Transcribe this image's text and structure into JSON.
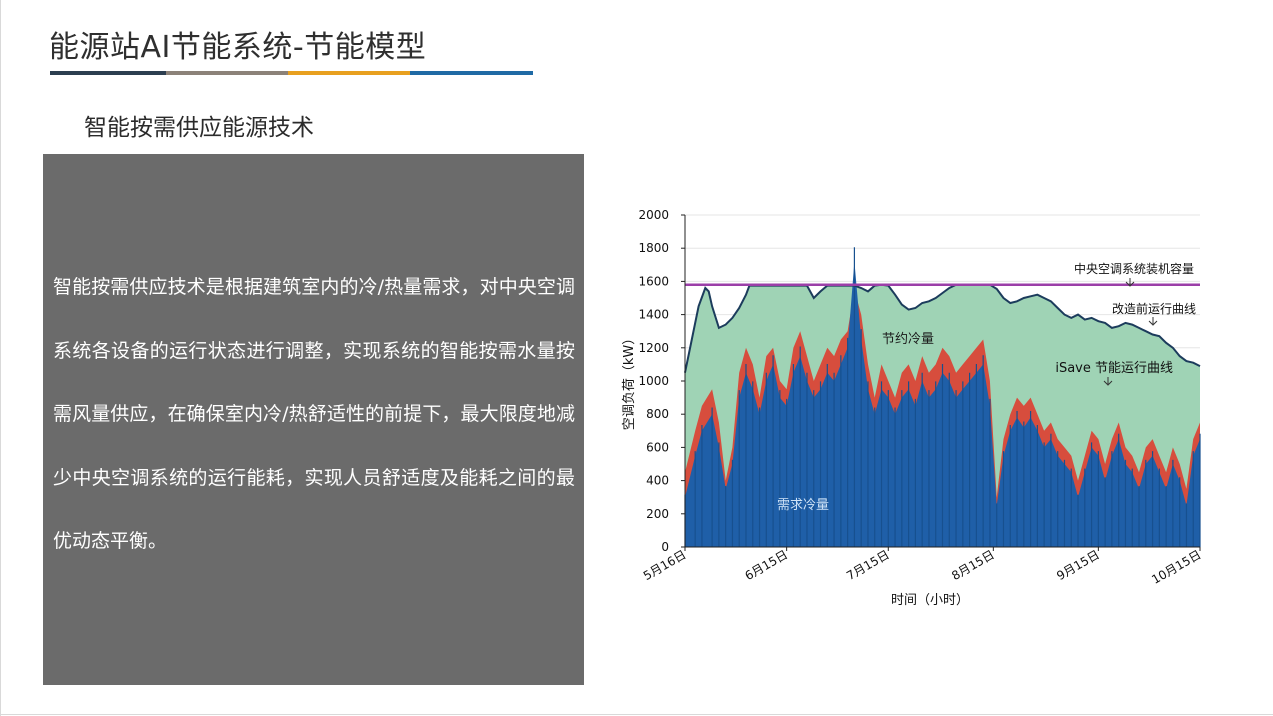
{
  "header": {
    "title": "能源站AI节能系统-节能模型",
    "subtitle": "智能按需供应能源技术",
    "bar_colors": [
      "#2c3e50",
      "#8c8279",
      "#e8a020",
      "#1f6aa5"
    ]
  },
  "panel": {
    "text": "智能按需供应技术是根据建筑室内的冷/热量需求，对中央空调系统各设备的运行状态进行调整，实现系统的智能按需水量按需风量供应，在确保室内冷/热舒适性的前提下，最大限度地减少中央空调系统的运行能耗，实现人员舒适度及能耗之间的最优动态平衡。",
    "background": "#6b6b6b"
  },
  "chart_data": {
    "type": "area",
    "xlabel": "时间（小时）",
    "ylabel": "空调负荷（kW）",
    "ylim": [
      0,
      2000
    ],
    "yticks": [
      0,
      200,
      400,
      600,
      800,
      1000,
      1200,
      1400,
      1600,
      1800,
      2000
    ],
    "xticks": [
      "5月16日",
      "6月15日",
      "7月15日",
      "8月15日",
      "9月15日",
      "10月15日"
    ],
    "x_index_range": [
      0,
      152
    ],
    "xtick_positions": [
      0,
      30,
      60,
      91,
      122,
      152
    ],
    "capacity_line": {
      "label": "中央空调系统装机容量",
      "value": 1580,
      "color": "#9b3fa8"
    },
    "series": [
      {
        "name": "改造前运行曲线",
        "color": "#1c3c5c",
        "points": [
          [
            0,
            1050
          ],
          [
            2,
            1250
          ],
          [
            4,
            1450
          ],
          [
            6,
            1560
          ],
          [
            7,
            1540
          ],
          [
            8,
            1450
          ],
          [
            10,
            1320
          ],
          [
            12,
            1340
          ],
          [
            14,
            1380
          ],
          [
            16,
            1440
          ],
          [
            18,
            1520
          ],
          [
            19,
            1575
          ],
          [
            36,
            1575
          ],
          [
            38,
            1500
          ],
          [
            40,
            1540
          ],
          [
            42,
            1575
          ],
          [
            50,
            1575
          ],
          [
            52,
            1560
          ],
          [
            54,
            1540
          ],
          [
            56,
            1575
          ],
          [
            58,
            1580
          ],
          [
            60,
            1575
          ],
          [
            62,
            1520
          ],
          [
            64,
            1460
          ],
          [
            66,
            1430
          ],
          [
            68,
            1440
          ],
          [
            70,
            1470
          ],
          [
            72,
            1480
          ],
          [
            74,
            1500
          ],
          [
            76,
            1530
          ],
          [
            78,
            1560
          ],
          [
            80,
            1580
          ],
          [
            90,
            1580
          ],
          [
            92,
            1555
          ],
          [
            94,
            1500
          ],
          [
            96,
            1470
          ],
          [
            98,
            1480
          ],
          [
            100,
            1500
          ],
          [
            102,
            1510
          ],
          [
            104,
            1520
          ],
          [
            106,
            1500
          ],
          [
            108,
            1480
          ],
          [
            110,
            1440
          ],
          [
            112,
            1400
          ],
          [
            114,
            1380
          ],
          [
            116,
            1400
          ],
          [
            118,
            1370
          ],
          [
            120,
            1380
          ],
          [
            122,
            1360
          ],
          [
            124,
            1350
          ],
          [
            126,
            1320
          ],
          [
            128,
            1330
          ],
          [
            130,
            1350
          ],
          [
            132,
            1340
          ],
          [
            134,
            1320
          ],
          [
            136,
            1300
          ],
          [
            138,
            1280
          ],
          [
            140,
            1270
          ],
          [
            142,
            1230
          ],
          [
            144,
            1200
          ],
          [
            146,
            1150
          ],
          [
            148,
            1120
          ],
          [
            150,
            1110
          ],
          [
            152,
            1090
          ]
        ]
      },
      {
        "name": "iSave 节能运行曲线",
        "color": "#e03528",
        "points": [
          [
            0,
            450
          ],
          [
            3,
            700
          ],
          [
            5,
            850
          ],
          [
            8,
            950
          ],
          [
            10,
            750
          ],
          [
            12,
            400
          ],
          [
            14,
            600
          ],
          [
            16,
            1050
          ],
          [
            18,
            1200
          ],
          [
            20,
            1100
          ],
          [
            22,
            900
          ],
          [
            24,
            1150
          ],
          [
            26,
            1200
          ],
          [
            28,
            1000
          ],
          [
            30,
            950
          ],
          [
            32,
            1200
          ],
          [
            34,
            1300
          ],
          [
            36,
            1150
          ],
          [
            38,
            1000
          ],
          [
            40,
            1100
          ],
          [
            42,
            1200
          ],
          [
            44,
            1150
          ],
          [
            46,
            1250
          ],
          [
            48,
            1300
          ],
          [
            50,
            1550
          ],
          [
            52,
            1400
          ],
          [
            54,
            1100
          ],
          [
            56,
            900
          ],
          [
            58,
            1100
          ],
          [
            60,
            1000
          ],
          [
            62,
            900
          ],
          [
            64,
            1050
          ],
          [
            66,
            1100
          ],
          [
            68,
            1000
          ],
          [
            70,
            1150
          ],
          [
            72,
            1050
          ],
          [
            74,
            1100
          ],
          [
            76,
            1200
          ],
          [
            78,
            1150
          ],
          [
            80,
            1050
          ],
          [
            82,
            1100
          ],
          [
            84,
            1150
          ],
          [
            86,
            1200
          ],
          [
            88,
            1250
          ],
          [
            90,
            1000
          ],
          [
            92,
            300
          ],
          [
            94,
            650
          ],
          [
            96,
            800
          ],
          [
            98,
            900
          ],
          [
            100,
            850
          ],
          [
            102,
            900
          ],
          [
            104,
            800
          ],
          [
            106,
            700
          ],
          [
            108,
            750
          ],
          [
            110,
            650
          ],
          [
            112,
            600
          ],
          [
            114,
            550
          ],
          [
            116,
            400
          ],
          [
            118,
            550
          ],
          [
            120,
            700
          ],
          [
            122,
            650
          ],
          [
            124,
            500
          ],
          [
            126,
            650
          ],
          [
            128,
            750
          ],
          [
            130,
            600
          ],
          [
            132,
            550
          ],
          [
            134,
            450
          ],
          [
            136,
            600
          ],
          [
            138,
            650
          ],
          [
            140,
            550
          ],
          [
            142,
            450
          ],
          [
            144,
            600
          ],
          [
            146,
            500
          ],
          [
            148,
            350
          ],
          [
            150,
            650
          ],
          [
            152,
            750
          ]
        ]
      },
      {
        "name": "需求冷量",
        "color": "#1f5fa8",
        "points": [
          [
            0,
            300
          ],
          [
            3,
            550
          ],
          [
            5,
            700
          ],
          [
            8,
            800
          ],
          [
            10,
            600
          ],
          [
            12,
            350
          ],
          [
            14,
            500
          ],
          [
            16,
            900
          ],
          [
            18,
            1050
          ],
          [
            20,
            950
          ],
          [
            22,
            800
          ],
          [
            24,
            1000
          ],
          [
            26,
            1100
          ],
          [
            28,
            900
          ],
          [
            30,
            850
          ],
          [
            32,
            1050
          ],
          [
            34,
            1150
          ],
          [
            36,
            1000
          ],
          [
            38,
            900
          ],
          [
            40,
            950
          ],
          [
            42,
            1050
          ],
          [
            44,
            1000
          ],
          [
            46,
            1100
          ],
          [
            48,
            1200
          ],
          [
            50,
            1720
          ],
          [
            52,
            1250
          ],
          [
            54,
            950
          ],
          [
            56,
            800
          ],
          [
            58,
            950
          ],
          [
            60,
            900
          ],
          [
            62,
            800
          ],
          [
            64,
            900
          ],
          [
            66,
            950
          ],
          [
            68,
            850
          ],
          [
            70,
            1000
          ],
          [
            72,
            900
          ],
          [
            74,
            950
          ],
          [
            76,
            1050
          ],
          [
            78,
            1000
          ],
          [
            80,
            900
          ],
          [
            82,
            950
          ],
          [
            84,
            1000
          ],
          [
            86,
            1050
          ],
          [
            88,
            1100
          ],
          [
            90,
            850
          ],
          [
            92,
            250
          ],
          [
            94,
            550
          ],
          [
            96,
            700
          ],
          [
            98,
            780
          ],
          [
            100,
            720
          ],
          [
            102,
            780
          ],
          [
            104,
            700
          ],
          [
            106,
            600
          ],
          [
            108,
            650
          ],
          [
            110,
            550
          ],
          [
            112,
            500
          ],
          [
            114,
            450
          ],
          [
            116,
            300
          ],
          [
            118,
            450
          ],
          [
            120,
            600
          ],
          [
            122,
            550
          ],
          [
            124,
            400
          ],
          [
            126,
            550
          ],
          [
            128,
            650
          ],
          [
            130,
            500
          ],
          [
            132,
            450
          ],
          [
            134,
            350
          ],
          [
            136,
            500
          ],
          [
            138,
            550
          ],
          [
            140,
            450
          ],
          [
            142,
            350
          ],
          [
            144,
            500
          ],
          [
            146,
            400
          ],
          [
            148,
            250
          ],
          [
            150,
            550
          ],
          [
            152,
            650
          ]
        ]
      }
    ],
    "region_labels": {
      "savings": "节约冷量",
      "demand": "需求冷量"
    },
    "annotations": [
      "中央空调系统装机容量",
      "改造前运行曲线",
      "iSave 节能运行曲线"
    ],
    "colors": {
      "savings_fill": "#9fd3b5",
      "demand_fill": "#1f5fa8",
      "isave_fill": "#e03528"
    }
  }
}
